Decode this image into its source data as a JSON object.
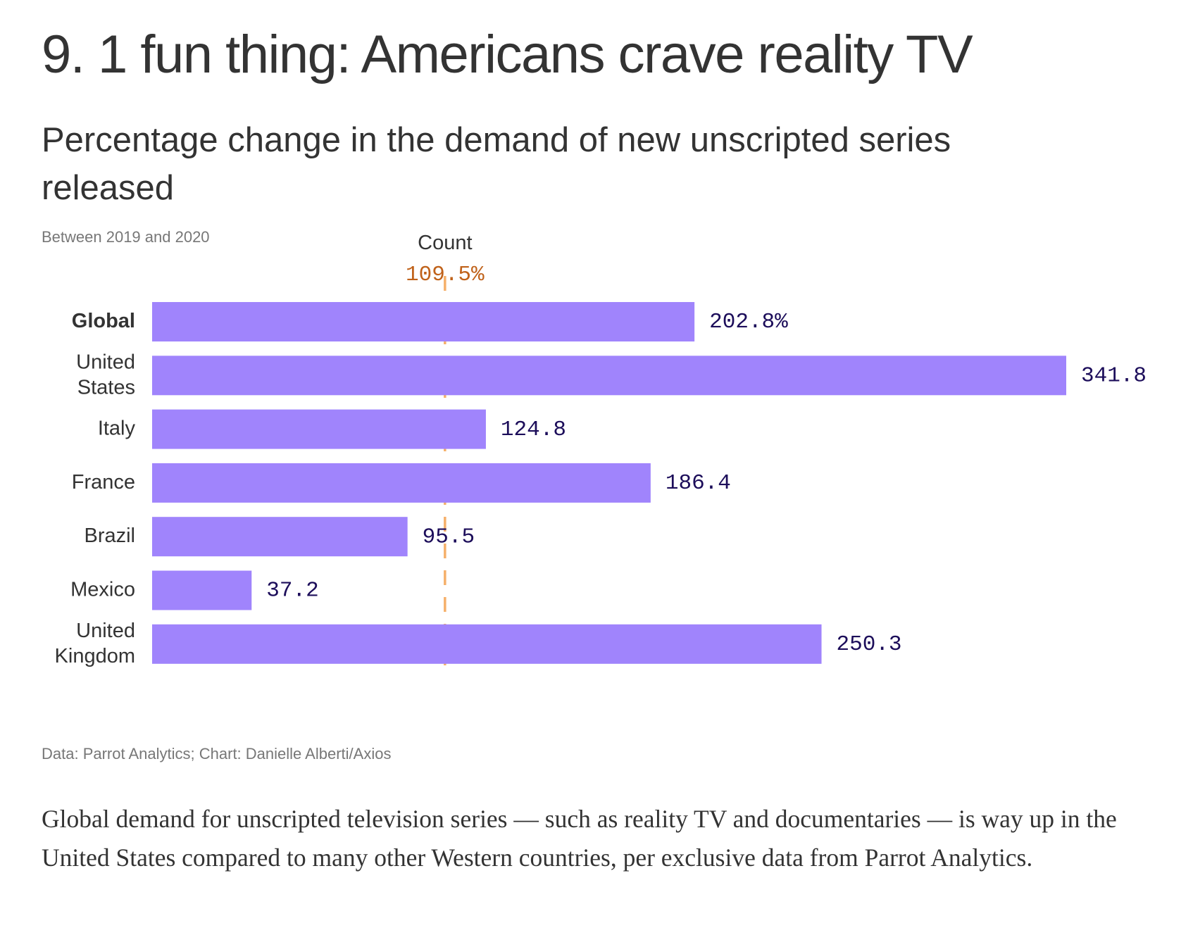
{
  "headline": "9. 1 fun thing: Americans crave reality TV",
  "chart_data": {
    "type": "bar",
    "orientation": "horizontal",
    "title": "Percentage change in the demand of new unscripted series released",
    "subtitle": "Between 2019 and 2020",
    "categories": [
      "Global",
      "United States",
      "Italy",
      "France",
      "Brazil",
      "Mexico",
      "United Kingdom"
    ],
    "category_lines": [
      [
        "Global"
      ],
      [
        "United",
        "States"
      ],
      [
        "Italy"
      ],
      [
        "France"
      ],
      [
        "Brazil"
      ],
      [
        "Mexico"
      ],
      [
        "United",
        "Kingdom"
      ]
    ],
    "bold_categories": [
      "Global"
    ],
    "values": [
      202.8,
      341.8,
      124.8,
      186.4,
      95.5,
      37.2,
      250.3
    ],
    "value_labels": [
      "202.8%",
      "341.8",
      "124.8",
      "186.4",
      "95.5",
      "37.2",
      "250.3"
    ],
    "xlim": [
      0,
      341.8
    ],
    "reference_line": {
      "name": "Count",
      "value": 109.5,
      "label": "109.5%",
      "style": "dashed"
    },
    "grid": false,
    "xlabel": "",
    "ylabel": "",
    "colors": {
      "bar": "#a084fc",
      "value_text": "#1c0d5a",
      "reference_line": "#f5b06a",
      "reference_text": "#c0621a"
    }
  },
  "source": "Data: Parrot Analytics; Chart: Danielle Alberti/Axios",
  "body_text": "Global demand for unscripted television series — such as reality TV and documentaries — is way up in the United States compared to many other Western countries, per exclusive data from Parrot Analytics."
}
